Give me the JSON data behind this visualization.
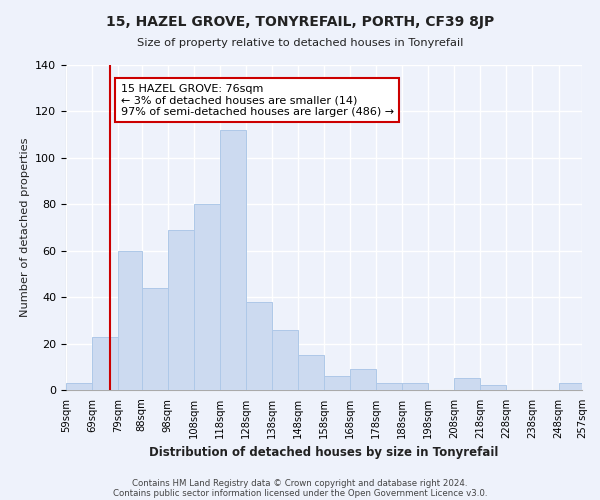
{
  "title": "15, HAZEL GROVE, TONYREFAIL, PORTH, CF39 8JP",
  "subtitle": "Size of property relative to detached houses in Tonyrefail",
  "xlabel": "Distribution of detached houses by size in Tonyrefail",
  "ylabel": "Number of detached properties",
  "bar_color": "#ccdaf0",
  "bar_edge_color": "#aec8e8",
  "bins": [
    59,
    69,
    79,
    88,
    98,
    108,
    118,
    128,
    138,
    148,
    158,
    168,
    178,
    188,
    198,
    208,
    218,
    228,
    238,
    248,
    257
  ],
  "counts": [
    3,
    23,
    60,
    44,
    69,
    80,
    112,
    38,
    26,
    15,
    6,
    9,
    3,
    3,
    0,
    5,
    2,
    0,
    0,
    3
  ],
  "tick_labels": [
    "59sqm",
    "69sqm",
    "79sqm",
    "88sqm",
    "98sqm",
    "108sqm",
    "118sqm",
    "128sqm",
    "138sqm",
    "148sqm",
    "158sqm",
    "168sqm",
    "178sqm",
    "188sqm",
    "198sqm",
    "208sqm",
    "218sqm",
    "228sqm",
    "238sqm",
    "248sqm",
    "257sqm"
  ],
  "vline_x": 76,
  "vline_color": "#cc0000",
  "annotation_text": "15 HAZEL GROVE: 76sqm\n← 3% of detached houses are smaller (14)\n97% of semi-detached houses are larger (486) →",
  "annotation_box_edgecolor": "#cc0000",
  "ylim": [
    0,
    140
  ],
  "yticks": [
    0,
    20,
    40,
    60,
    80,
    100,
    120,
    140
  ],
  "footer1": "Contains HM Land Registry data © Crown copyright and database right 2024.",
  "footer2": "Contains public sector information licensed under the Open Government Licence v3.0.",
  "background_color": "#eef2fb",
  "plot_bg_color": "#eef2fb",
  "grid_color": "#ffffff"
}
